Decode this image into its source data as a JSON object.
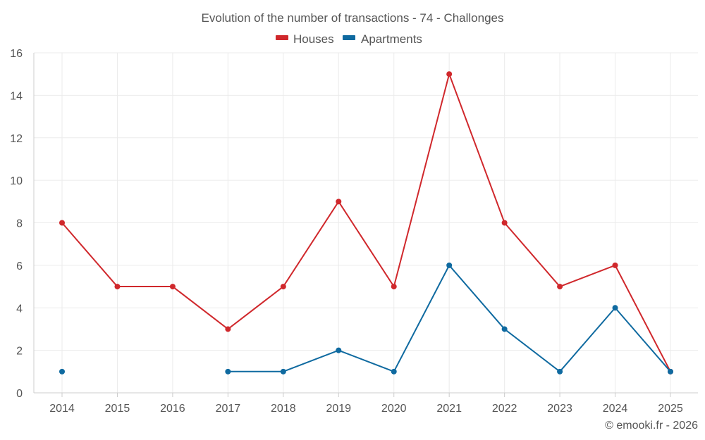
{
  "chart_data": {
    "type": "line",
    "title": "Evolution of the number of transactions - 74 - Challonges",
    "categories": [
      "2014",
      "2015",
      "2016",
      "2017",
      "2018",
      "2019",
      "2020",
      "2021",
      "2022",
      "2023",
      "2024",
      "2025"
    ],
    "ylim": [
      0,
      16
    ],
    "yticks": [
      0,
      2,
      4,
      6,
      8,
      10,
      12,
      14,
      16
    ],
    "ytick_labels": [
      "0",
      "2",
      "4",
      "6",
      "8",
      "10",
      "12",
      "14",
      "16"
    ],
    "grid": true,
    "legend_position": "top-center",
    "series": [
      {
        "name": "Houses",
        "color": "#d0282c",
        "values": [
          8,
          5,
          5,
          3,
          5,
          9,
          5,
          15,
          8,
          5,
          6,
          1
        ]
      },
      {
        "name": "Apartments",
        "color": "#0f6aa0",
        "values": [
          1,
          null,
          null,
          1,
          1,
          2,
          1,
          6,
          3,
          1,
          4,
          1
        ]
      }
    ]
  },
  "footer": {
    "credit": "© emooki.fr - 2026"
  }
}
